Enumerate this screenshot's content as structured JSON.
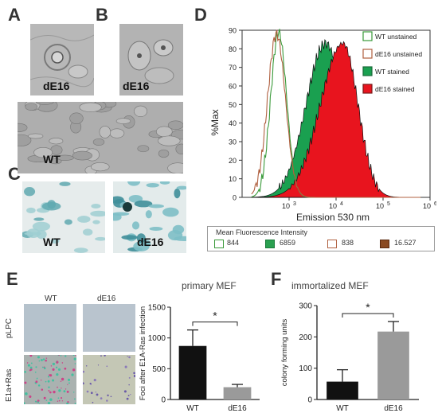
{
  "panels": {
    "a": "A",
    "b": "B",
    "c": "C",
    "d": "D",
    "e": "E",
    "f": "F"
  },
  "micrographs": {
    "a_label": "dE16",
    "b_label": "dE16",
    "wt_large_label": "WT",
    "c_wt_label": "WT",
    "c_de16_label": "dE16"
  },
  "flow": {
    "ylabel": "%Max",
    "xlabel": "Emission 530 nm",
    "yticks": [
      "0",
      "10",
      "20",
      "30",
      "40",
      "50",
      "60",
      "70",
      "80",
      "90"
    ],
    "xticks": [
      "10",
      "10",
      "10",
      "10"
    ],
    "xtick_exp": [
      "3",
      "4",
      "5",
      "6"
    ],
    "legend": [
      "WT unstained",
      "dE16 unstained",
      "WT stained",
      "dE16 stained"
    ],
    "mfi_title": "Mean Fluorescence Intensity",
    "mfi_values": [
      "844",
      "6859",
      "838",
      "16.527"
    ],
    "colors": {
      "wt_unstained": "#3a9a3a",
      "de16_unstained": "#b06040",
      "wt_stained": "#1aa050",
      "de16_stained": "#e8141e"
    }
  },
  "panel_e": {
    "title": "primary MEF",
    "col_wt": "WT",
    "col_de16": "dE16",
    "row_plpc": "pLPC",
    "row_e1a": "E1a+Ras",
    "star": "*"
  },
  "panel_f": {
    "title": "immortalized MEF",
    "star": "*"
  },
  "chart_data": [
    {
      "type": "area",
      "title": "",
      "xlabel": "Emission 530 nm",
      "ylabel": "%Max",
      "ylim": [
        0,
        90
      ],
      "x_scale": "log",
      "xlim": [
        100,
        1000000
      ],
      "series": [
        {
          "name": "WT unstained",
          "peak_x": 600,
          "peak_y": 89
        },
        {
          "name": "dE16 unstained",
          "peak_x": 600,
          "peak_y": 88
        },
        {
          "name": "WT stained",
          "peak_x": 6000,
          "peak_y": 83
        },
        {
          "name": "dE16 stained",
          "peak_x": 14000,
          "peak_y": 83
        }
      ],
      "legend_position": "top-right"
    },
    {
      "type": "bar",
      "title": "",
      "ylabel": "Foci after E1A-Ras infection",
      "categories": [
        "WT",
        "dE16"
      ],
      "values": [
        870,
        200
      ],
      "errors": [
        260,
        45
      ],
      "ylim": [
        0,
        1500
      ],
      "yticks": [
        "0",
        "500",
        "1000",
        "1500"
      ],
      "colors": [
        "#111111",
        "#9a9a9a"
      ]
    },
    {
      "type": "bar",
      "title": "",
      "ylabel": "colony forming units",
      "categories": [
        "WT",
        "dE16"
      ],
      "values": [
        57,
        217
      ],
      "errors": [
        38,
        32
      ],
      "ylim": [
        0,
        300
      ],
      "yticks": [
        "0",
        "100",
        "200",
        "300"
      ],
      "colors": [
        "#111111",
        "#9a9a9a"
      ]
    }
  ]
}
